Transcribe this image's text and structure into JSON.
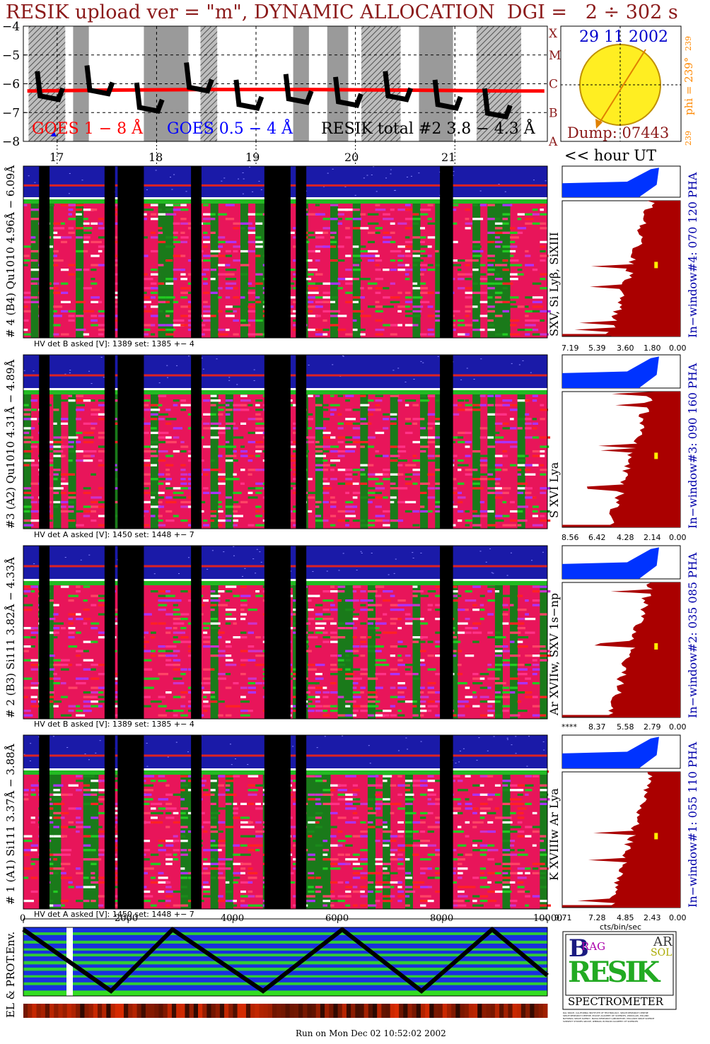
{
  "title": "RESIK upload ver = \"m\", DYNAMIC ALLOCATION  DGI =   2 ÷ 302 s",
  "colors": {
    "title": "#8b1a1a",
    "goes_long": "#ff0000",
    "goes_short": "#0000ff",
    "resik_total": "#000000",
    "pha": "#0033ff",
    "spectrum": "#aa0000",
    "sun": "#ffee22",
    "date": "#0000cc",
    "phi": "#ff8800"
  },
  "goes": {
    "y_ticks": [
      "−4",
      "−5",
      "−6",
      "−7",
      "−8"
    ],
    "class_letters": [
      "X",
      "M",
      "C",
      "B",
      "A"
    ],
    "legend_long": "GOES 1 − 8 Å",
    "legend_short": "GOES 0.5 − 4 Å",
    "legend_resik": "RESIK total #2  3.8 − 4.3 Å"
  },
  "sun": {
    "date": "29 11 2002",
    "dump": "Dump: 07443",
    "phi_label": "phi = 239°",
    "phi_top": "239",
    "phi_bottom": "239"
  },
  "hour_axis": {
    "labels": [
      "17",
      "18",
      "19",
      "20",
      "21"
    ],
    "note": "<< hour UT"
  },
  "panels": [
    {
      "left_label": "# 4 (B4) Qu1010 4.96Å − 6.09Å",
      "hv": "HV det B asked [V]:  1389 set:  1385  +−    4",
      "line_label": "SXV, Si Lyβ, SiXIII",
      "window_label": "In−window#4:  070 120 PHA",
      "x_ticks": [
        "7.19",
        "5.39",
        "3.60",
        "1.80",
        "0.00"
      ]
    },
    {
      "left_label": "#3 (A2) Qu1010  4.31Å − 4.89Å",
      "hv": "HV det A asked [V]:  1450 set:  1448  +−    7",
      "line_label": "S XVI Lya",
      "window_label": "In−window#3:  090 160 PHA",
      "x_ticks": [
        "8.56",
        "6.42",
        "4.28",
        "2.14",
        "0.00"
      ]
    },
    {
      "left_label": "# 2 (B3) Si111  3.82Å − 4.33Å",
      "hv": "HV det B asked [V]:  1389 set:  1385  +−    4",
      "line_label": "Ar XVIIw, SXV 1s−np",
      "window_label": "In−window#2:  035 085 PHA",
      "x_ticks": [
        "****",
        "8.37",
        "5.58",
        "2.79",
        "0.00"
      ]
    },
    {
      "left_label": "# 1 (A1) Si111  3.37Å − 3.88Å",
      "hv": "HV det A asked [V]:  1450 set:  1448  +−    7",
      "line_label": "K XVIIIw  Ar Lya",
      "window_label": "In−window#1:  055 110 PHA",
      "x_ticks": [
        "9.71",
        "7.28",
        "4.85",
        "2.43",
        "0.00"
      ]
    }
  ],
  "spectrum_x_label": "cts/bin/sec",
  "bottom_axis": {
    "ticks": [
      "0",
      "2000",
      "4000",
      "6000",
      "8000",
      "10000"
    ]
  },
  "env_label": "EL & PROT.Env.",
  "logo": {
    "b": "B",
    "rag": "RAG",
    "resik": "RESIK",
    "sol": "SOL",
    "ar": "AR",
    "spectrometer": "SPECTROMETER",
    "fine_print": [
      "RAL SPACE, CALIFORNIA INSTITUTE OF TECHNOLOGY, SPACE RESEARCH CENTRE",
      "SPACE RESEARCH CENTRE, POLISH ACADEMY OF SCIENCES, WROCLAW, POLAND",
      "NATIONAL SPACE AGENCY, NAVAL RESEARCH LABORATORY, MULLARD SPACE SCIENCE",
      "SUNSPOT STUDIES GROUP, IZMIRAN, RUSSIAN ACADEMY OF SCIENCES"
    ]
  },
  "footer": "Run on Mon Dec 02 10:52:02 2002",
  "chart_data": [
    {
      "type": "line",
      "title": "RESIK upload ver = \"m\", DYNAMIC ALLOCATION  DGI =   2 ÷ 302 s",
      "xlabel": "<< hour UT",
      "ylabel": "",
      "x_ticks": [
        17,
        18,
        19,
        20,
        21
      ],
      "ylim": [
        -8,
        -4
      ],
      "series": [
        {
          "name": "GOES 1 − 8 Å",
          "x": [
            16.7,
            17.5,
            18.5,
            19.5,
            20.5,
            21.5,
            21.9
          ],
          "y": [
            -6.25,
            -6.22,
            -6.2,
            -6.2,
            -6.22,
            -6.25,
            -6.25
          ]
        },
        {
          "name": "RESIK total #2  3.8 − 4.3 Å",
          "x": [
            16.8,
            17.3,
            17.8,
            18.3,
            18.8,
            19.3,
            19.8,
            20.3,
            20.8,
            21.3
          ],
          "y": [
            -6.3,
            -6.1,
            -6.7,
            -6.0,
            -6.6,
            -6.4,
            -6.5,
            -6.3,
            -6.6,
            -6.9
          ]
        }
      ]
    },
    {
      "type": "heatmap",
      "title": "",
      "xlabel": "",
      "ylabel": "",
      "x_ticks": [
        0,
        2000,
        4000,
        6000,
        8000,
        10000
      ],
      "xlim": [
        0,
        10000
      ]
    }
  ]
}
